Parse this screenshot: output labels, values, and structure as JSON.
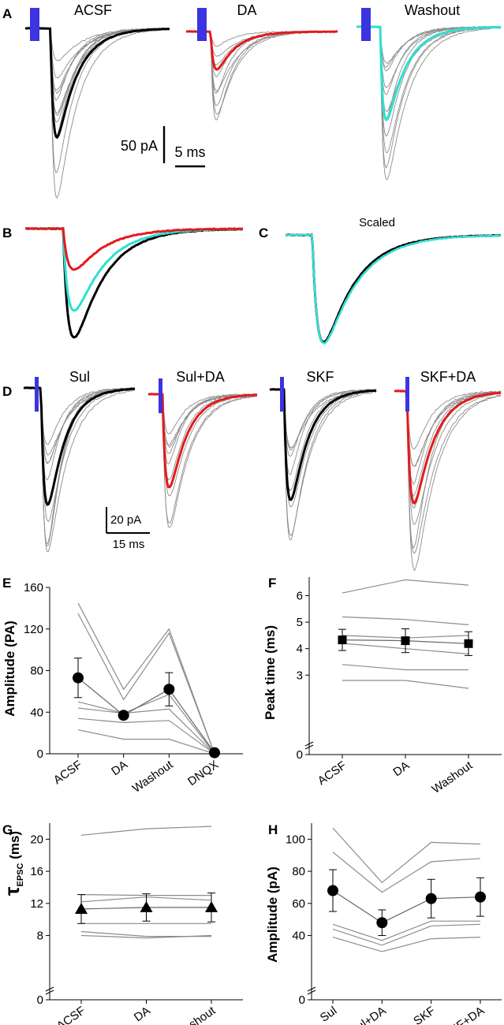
{
  "colors": {
    "acsf": "#000000",
    "da": "#e31a1c",
    "washout": "#2de0d2",
    "light": "#3b34e0",
    "indiv": "#8c8c8c"
  },
  "panel_labels": {
    "a": "A",
    "b": "B",
    "c": "C",
    "d": "D",
    "e": "E",
    "f": "F",
    "g": "G",
    "h": "H"
  },
  "panel_a": {
    "titles": [
      "ACSF",
      "DA",
      "Washout"
    ],
    "scale_y": "50 pA",
    "scale_x": "5 ms"
  },
  "panel_c": {
    "title": "Scaled"
  },
  "panel_d": {
    "titles": [
      "Sul",
      "Sul+DA",
      "SKF",
      "SKF+DA"
    ],
    "scale_y": "20 pA",
    "scale_x": "15 ms"
  },
  "chart_data": [
    {
      "id": "E",
      "type": "line",
      "categories": [
        "ACSF",
        "DA",
        "Washout",
        "DNQX"
      ],
      "ylabel": "Amplitude (PA)",
      "ylim": [
        0,
        160
      ],
      "yticks": [
        0,
        40,
        80,
        120,
        160
      ],
      "individual": [
        [
          145,
          62,
          120,
          0
        ],
        [
          135,
          52,
          116,
          0
        ],
        [
          50,
          39,
          57,
          0
        ],
        [
          44,
          39,
          43,
          0
        ],
        [
          34,
          30,
          32,
          0
        ],
        [
          23,
          14,
          14,
          0
        ]
      ],
      "mean": [
        73,
        37,
        62,
        1
      ],
      "error": [
        19,
        3,
        16,
        0
      ],
      "marker": "circle"
    },
    {
      "id": "F",
      "type": "line",
      "categories": [
        "ACSF",
        "DA",
        "Washout"
      ],
      "ylabel": "Peak time (ms)",
      "ylim": [
        0,
        6.7
      ],
      "yticks": [
        0,
        3,
        4,
        5,
        6
      ],
      "axis_break": true,
      "individual": [
        [
          6.1,
          6.6,
          6.4
        ],
        [
          5.2,
          5.1,
          4.9
        ],
        [
          4.5,
          4.4,
          4.5
        ],
        [
          4.2,
          4.0,
          3.8
        ],
        [
          3.4,
          3.2,
          3.2
        ],
        [
          2.8,
          2.8,
          2.5
        ]
      ],
      "mean": [
        4.33,
        4.3,
        4.19
      ],
      "error": [
        0.4,
        0.45,
        0.45
      ],
      "marker": "square"
    },
    {
      "id": "G",
      "type": "line",
      "categories": [
        "ACSF",
        "DA",
        "Washout"
      ],
      "ylabel_main": "τ",
      "ylabel_sub": "EPSC",
      "ylabel_unit": " (ms)",
      "ylim": [
        0,
        22
      ],
      "yticks": [
        0,
        8,
        12,
        16,
        20
      ],
      "axis_break": true,
      "individual": [
        [
          20.5,
          21.3,
          21.6
        ],
        [
          13.1,
          13.0,
          13.0
        ],
        [
          12.2,
          12.8,
          12.4
        ],
        [
          9.5,
          9.5,
          9.5
        ],
        [
          8.5,
          7.9,
          7.9
        ],
        [
          8.0,
          7.7,
          8.0
        ]
      ],
      "mean": [
        11.3,
        11.5,
        11.5
      ],
      "error": [
        1.8,
        1.7,
        1.8
      ],
      "marker": "triangle"
    },
    {
      "id": "H",
      "type": "line",
      "categories": [
        "Sul",
        "Sul+DA",
        "SKF",
        "SKF+DA"
      ],
      "ylabel": "Amplitude (pA)",
      "ylim": [
        0,
        110
      ],
      "yticks": [
        0,
        40,
        60,
        80,
        100
      ],
      "axis_break": true,
      "individual": [
        [
          107,
          73,
          98,
          97
        ],
        [
          92,
          67,
          86,
          88
        ],
        [
          47,
          37,
          49,
          49
        ],
        [
          44,
          34,
          46,
          47
        ],
        [
          39,
          30,
          38,
          39
        ]
      ],
      "mean": [
        68,
        48,
        63,
        64
      ],
      "error": [
        13,
        8,
        12,
        12
      ],
      "marker": "circle"
    }
  ]
}
